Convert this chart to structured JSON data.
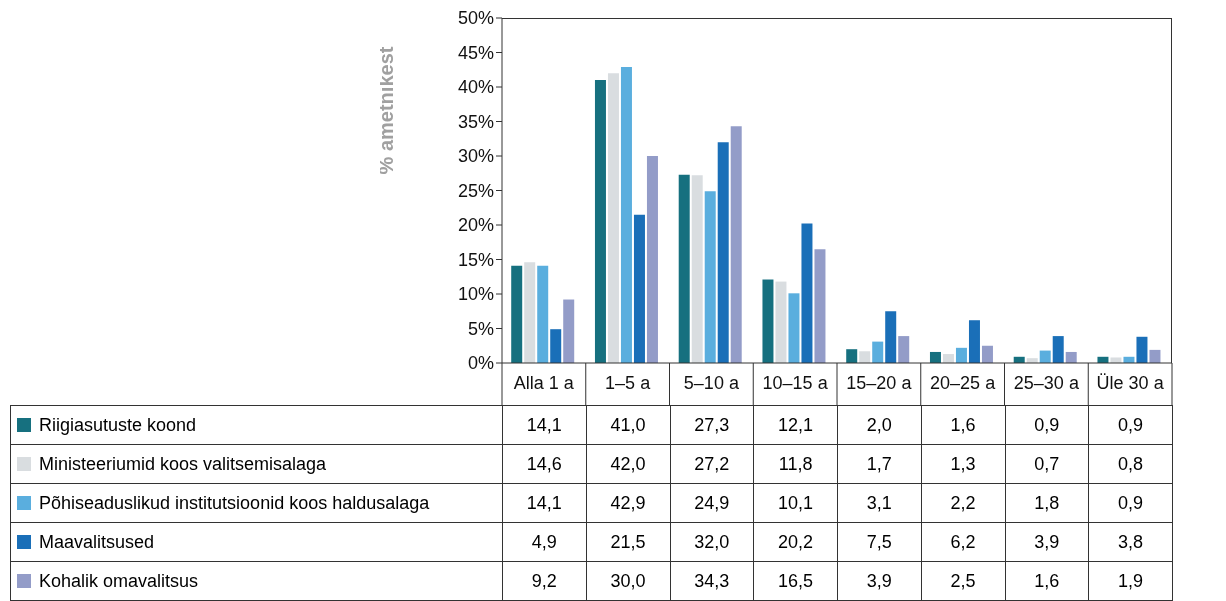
{
  "chart_data": {
    "type": "bar",
    "ylabel": "% ametnikest",
    "categories": [
      "Alla 1 a",
      "1–5 a",
      "5–10 a",
      "10–15 a",
      "15–20 a",
      "20–25 a",
      "25–30 a",
      "Üle 30 a"
    ],
    "ylim": [
      0,
      50
    ],
    "yticks": [
      {
        "value": 0,
        "label": "0%"
      },
      {
        "value": 5,
        "label": "5%"
      },
      {
        "value": 10,
        "label": "10%"
      },
      {
        "value": 15,
        "label": "15%"
      },
      {
        "value": 20,
        "label": "20%"
      },
      {
        "value": 25,
        "label": "25%"
      },
      {
        "value": 30,
        "label": "30%"
      },
      {
        "value": 35,
        "label": "35%"
      },
      {
        "value": 40,
        "label": "40%"
      },
      {
        "value": 45,
        "label": "45%"
      },
      {
        "value": 50,
        "label": "50%"
      }
    ],
    "grid": false,
    "legend": "bottom",
    "series": [
      {
        "name": "Riigiasutuste koond",
        "color": "#16707f",
        "values": [
          14.1,
          41.0,
          27.3,
          12.1,
          2.0,
          1.6,
          0.9,
          0.9
        ],
        "value_labels": [
          "14,1",
          "41,0",
          "27,3",
          "12,1",
          "2,0",
          "1,6",
          "0,9",
          "0,9"
        ]
      },
      {
        "name": "Ministeeriumid koos valitsemisalaga",
        "color": "#d9dde0",
        "values": [
          14.6,
          42.0,
          27.2,
          11.8,
          1.7,
          1.3,
          0.7,
          0.8
        ],
        "value_labels": [
          "14,6",
          "42,0",
          "27,2",
          "11,8",
          "1,7",
          "1,3",
          "0,7",
          "0,8"
        ]
      },
      {
        "name": "Põhiseaduslikud institutsioonid koos haldusalaga",
        "color": "#5aaede",
        "values": [
          14.1,
          42.9,
          24.9,
          10.1,
          3.1,
          2.2,
          1.8,
          0.9
        ],
        "value_labels": [
          "14,1",
          "42,9",
          "24,9",
          "10,1",
          "3,1",
          "2,2",
          "1,8",
          "0,9"
        ]
      },
      {
        "name": "Maavalitsused",
        "color": "#1a6fb8",
        "values": [
          4.9,
          21.5,
          32.0,
          20.2,
          7.5,
          6.2,
          3.9,
          3.8
        ],
        "value_labels": [
          "4,9",
          "21,5",
          "32,0",
          "20,2",
          "7,5",
          "6,2",
          "3,9",
          "3,8"
        ]
      },
      {
        "name": "Kohalik omavalitsus",
        "color": "#939cc8",
        "values": [
          9.2,
          30.0,
          34.3,
          16.5,
          3.9,
          2.5,
          1.6,
          1.9
        ],
        "value_labels": [
          "9,2",
          "30,0",
          "34,3",
          "16,5",
          "3,9",
          "2,5",
          "1,6",
          "1,9"
        ]
      }
    ]
  }
}
